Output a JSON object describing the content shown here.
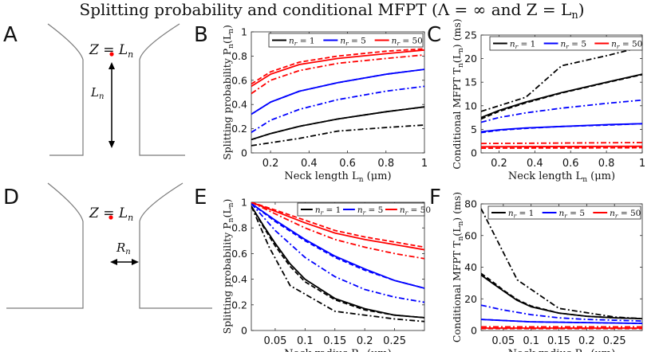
{
  "figure": {
    "title": "Splitting probability and conditional MFPT (Λ = ∞ and Z = L",
    "title_sub": "n",
    "title_end": ")"
  },
  "schematics": [
    {
      "letter": "A",
      "z_label": "Z = L",
      "z_sub": "n",
      "dim_label": "L",
      "dim_sub": "n",
      "arrow": "vertical"
    },
    {
      "letter": "D",
      "z_label": "Z = L",
      "z_sub": "n",
      "dim_label": "R",
      "dim_sub": "n",
      "arrow": "horizontal"
    }
  ],
  "colors": {
    "nr1": "#000000",
    "nr5": "#0000ff",
    "nr50": "#ff0000",
    "axis": "#262626",
    "schematic": "#7a7a7a",
    "point": "#ff0000"
  },
  "chart_data": [
    {
      "panel": "B",
      "type": "line",
      "xlabel": "Neck length L",
      "xlabel_sub": "n",
      "xlabel_unit": " (μm)",
      "ylabel": "Splitting probability P",
      "ylabel_sub": "n",
      "ylabel_arg": "(L",
      "ylabel_arg_sub": "n",
      "ylabel_end": ")",
      "xlim": [
        0.1,
        1.0
      ],
      "ylim": [
        0,
        1.0
      ],
      "xticks": [
        0.2,
        0.4,
        0.6,
        0.8,
        1.0
      ],
      "xticklabels": [
        "0.2",
        "0.4",
        "0.6",
        "0.8",
        "1"
      ],
      "yticks": [
        0,
        0.2,
        0.4,
        0.6,
        0.8,
        1.0
      ],
      "yticklabels": [
        "0",
        "0.2",
        "0.4",
        "0.6",
        "0.8",
        "1"
      ],
      "legend": [
        "n_r = 1",
        "n_r = 5",
        "n_r = 50"
      ],
      "legend_position": "top",
      "series": [
        {
          "name": "n_r = 1",
          "color": "nr1",
          "style": "solid",
          "x": [
            0.1,
            0.2,
            0.35,
            0.55,
            0.8,
            1.0
          ],
          "y": [
            0.11,
            0.16,
            0.22,
            0.28,
            0.34,
            0.38
          ]
        },
        {
          "name": "n_r = 1",
          "color": "nr1",
          "style": "dashed",
          "x": [
            0.1,
            0.2,
            0.35,
            0.55,
            0.8,
            1.0
          ],
          "y": [
            0.11,
            0.16,
            0.22,
            0.28,
            0.34,
            0.38
          ]
        },
        {
          "name": "n_r = 1",
          "color": "nr1",
          "style": "dashdot",
          "x": [
            0.1,
            0.35,
            0.55,
            0.8,
            1.0
          ],
          "y": [
            0.06,
            0.12,
            0.18,
            0.21,
            0.23
          ]
        },
        {
          "name": "n_r = 5",
          "color": "nr5",
          "style": "solid",
          "x": [
            0.1,
            0.2,
            0.35,
            0.55,
            0.8,
            1.0
          ],
          "y": [
            0.32,
            0.42,
            0.51,
            0.58,
            0.65,
            0.69
          ]
        },
        {
          "name": "n_r = 5",
          "color": "nr5",
          "style": "dashed",
          "x": [
            0.1,
            0.2,
            0.35,
            0.55,
            0.8,
            1.0
          ],
          "y": [
            0.32,
            0.42,
            0.51,
            0.58,
            0.65,
            0.69
          ]
        },
        {
          "name": "n_r = 5",
          "color": "nr5",
          "style": "dashdot",
          "x": [
            0.1,
            0.2,
            0.35,
            0.55,
            0.8,
            1.0
          ],
          "y": [
            0.17,
            0.27,
            0.36,
            0.44,
            0.51,
            0.55
          ]
        },
        {
          "name": "n_r = 50",
          "color": "nr50",
          "style": "solid",
          "x": [
            0.1,
            0.2,
            0.35,
            0.55,
            0.8,
            1.0
          ],
          "y": [
            0.55,
            0.65,
            0.73,
            0.78,
            0.82,
            0.85
          ]
        },
        {
          "name": "n_r = 50",
          "color": "nr50",
          "style": "dashed",
          "x": [
            0.1,
            0.2,
            0.35,
            0.55,
            0.8,
            1.0
          ],
          "y": [
            0.57,
            0.67,
            0.75,
            0.8,
            0.84,
            0.86
          ]
        },
        {
          "name": "n_r = 50",
          "color": "nr50",
          "style": "dashdot",
          "x": [
            0.1,
            0.2,
            0.35,
            0.55,
            0.8,
            1.0
          ],
          "y": [
            0.49,
            0.6,
            0.68,
            0.74,
            0.78,
            0.81
          ]
        }
      ]
    },
    {
      "panel": "C",
      "type": "line",
      "xlabel": "Neck length L",
      "xlabel_sub": "n",
      "xlabel_unit": " (μm)",
      "ylabel": "Conditional MFPT T",
      "ylabel_sub": "n",
      "ylabel_arg": "(L",
      "ylabel_arg_sub": "n",
      "ylabel_end": ") (ms)",
      "xlim": [
        0.1,
        1.0
      ],
      "ylim": [
        0,
        25
      ],
      "xticks": [
        0.2,
        0.4,
        0.6,
        0.8,
        1.0
      ],
      "xticklabels": [
        "0.2",
        "0.4",
        "0.6",
        "0.8",
        "1"
      ],
      "yticks": [
        0,
        5,
        10,
        15,
        20,
        25
      ],
      "yticklabels": [
        "0",
        "5",
        "10",
        "15",
        "20",
        "25"
      ],
      "legend": [
        "n_r = 1",
        "n_r = 5",
        "n_r = 50"
      ],
      "legend_position": "top",
      "series": [
        {
          "name": "n_r = 1",
          "color": "nr1",
          "style": "solid",
          "x": [
            0.1,
            0.2,
            0.35,
            0.55,
            0.8,
            1.0
          ],
          "y": [
            7.5,
            9.0,
            10.8,
            12.8,
            15.0,
            16.7
          ]
        },
        {
          "name": "n_r = 1",
          "color": "nr1",
          "style": "dashed",
          "x": [
            0.1,
            0.2,
            0.35,
            0.55,
            0.8,
            1.0
          ],
          "y": [
            7.2,
            8.8,
            10.6,
            12.7,
            14.9,
            16.6
          ]
        },
        {
          "name": "n_r = 1",
          "color": "nr1",
          "style": "dashdot",
          "x": [
            0.1,
            0.35,
            0.55,
            0.8,
            1.0
          ],
          "y": [
            8.8,
            11.8,
            18.5,
            20.6,
            22.5
          ]
        },
        {
          "name": "n_r = 5",
          "color": "nr5",
          "style": "solid",
          "x": [
            0.1,
            0.2,
            0.35,
            0.55,
            0.8,
            1.0
          ],
          "y": [
            4.5,
            4.9,
            5.3,
            5.6,
            6.0,
            6.2
          ]
        },
        {
          "name": "n_r = 5",
          "color": "nr5",
          "style": "dashed",
          "x": [
            0.1,
            0.2,
            0.35,
            0.55,
            0.8,
            1.0
          ],
          "y": [
            4.3,
            4.8,
            5.2,
            5.6,
            5.9,
            6.2
          ]
        },
        {
          "name": "n_r = 5",
          "color": "nr5",
          "style": "dashdot",
          "x": [
            0.1,
            0.2,
            0.35,
            0.55,
            0.8,
            1.0
          ],
          "y": [
            6.5,
            7.5,
            8.5,
            9.5,
            10.5,
            11.2
          ]
        },
        {
          "name": "n_r = 50",
          "color": "nr50",
          "style": "solid",
          "x": [
            0.1,
            1.0
          ],
          "y": [
            1.3,
            1.4
          ]
        },
        {
          "name": "n_r = 50",
          "color": "nr50",
          "style": "dashed",
          "x": [
            0.1,
            1.0
          ],
          "y": [
            1.0,
            1.1
          ]
        },
        {
          "name": "n_r = 50",
          "color": "nr50",
          "style": "dashdot",
          "x": [
            0.1,
            1.0
          ],
          "y": [
            2.0,
            2.2
          ]
        }
      ]
    },
    {
      "panel": "E",
      "type": "line",
      "xlabel": "Neck radius R",
      "xlabel_sub": "n",
      "xlabel_unit": " (μm)",
      "ylabel": "Splitting probability P",
      "ylabel_sub": "n",
      "ylabel_arg": "(L",
      "ylabel_arg_sub": "n",
      "ylabel_end": ")",
      "xlim": [
        0.01,
        0.3
      ],
      "ylim": [
        0,
        1.0
      ],
      "xticks": [
        0.05,
        0.1,
        0.15,
        0.2,
        0.25
      ],
      "xticklabels": [
        "0.05",
        "0.1",
        "0.15",
        "0.2",
        "0.25"
      ],
      "yticks": [
        0,
        0.2,
        0.4,
        0.6,
        0.8,
        1.0
      ],
      "yticklabels": [
        "0",
        "0.2",
        "0.4",
        "0.6",
        "0.8",
        "1"
      ],
      "legend": [
        "n_r = 1",
        "n_r = 5",
        "n_r = 50"
      ],
      "legend_position": "top",
      "series": [
        {
          "name": "n_r = 1",
          "color": "nr1",
          "style": "solid",
          "x": [
            0.01,
            0.03,
            0.05,
            0.075,
            0.1,
            0.15,
            0.2,
            0.25,
            0.3
          ],
          "y": [
            0.97,
            0.82,
            0.68,
            0.52,
            0.4,
            0.25,
            0.17,
            0.12,
            0.1
          ]
        },
        {
          "name": "n_r = 1",
          "color": "nr1",
          "style": "dashed",
          "x": [
            0.01,
            0.03,
            0.05,
            0.075,
            0.1,
            0.15,
            0.2,
            0.25,
            0.3
          ],
          "y": [
            0.97,
            0.81,
            0.66,
            0.5,
            0.38,
            0.24,
            0.16,
            0.12,
            0.1
          ]
        },
        {
          "name": "n_r = 1",
          "color": "nr1",
          "style": "dashdot",
          "x": [
            0.01,
            0.04,
            0.075,
            0.15,
            0.25,
            0.3
          ],
          "y": [
            0.97,
            0.65,
            0.35,
            0.15,
            0.09,
            0.07
          ]
        },
        {
          "name": "n_r = 5",
          "color": "nr5",
          "style": "solid",
          "x": [
            0.01,
            0.05,
            0.1,
            0.15,
            0.2,
            0.25,
            0.3
          ],
          "y": [
            0.99,
            0.86,
            0.71,
            0.58,
            0.48,
            0.39,
            0.33
          ]
        },
        {
          "name": "n_r = 5",
          "color": "nr5",
          "style": "dashed",
          "x": [
            0.01,
            0.05,
            0.1,
            0.15,
            0.2,
            0.25,
            0.3
          ],
          "y": [
            0.99,
            0.85,
            0.7,
            0.57,
            0.47,
            0.39,
            0.33
          ]
        },
        {
          "name": "n_r = 5",
          "color": "nr5",
          "style": "dashdot",
          "x": [
            0.01,
            0.05,
            0.1,
            0.15,
            0.2,
            0.25,
            0.3
          ],
          "y": [
            0.99,
            0.78,
            0.57,
            0.42,
            0.32,
            0.26,
            0.22
          ]
        },
        {
          "name": "n_r = 50",
          "color": "nr50",
          "style": "solid",
          "x": [
            0.01,
            0.05,
            0.1,
            0.15,
            0.2,
            0.25,
            0.3
          ],
          "y": [
            1.0,
            0.93,
            0.84,
            0.76,
            0.71,
            0.67,
            0.63
          ]
        },
        {
          "name": "n_r = 50",
          "color": "nr50",
          "style": "dashed",
          "x": [
            0.01,
            0.05,
            0.1,
            0.15,
            0.2,
            0.25,
            0.3
          ],
          "y": [
            1.0,
            0.94,
            0.86,
            0.78,
            0.73,
            0.69,
            0.65
          ]
        },
        {
          "name": "n_r = 50",
          "color": "nr50",
          "style": "dashdot",
          "x": [
            0.01,
            0.05,
            0.1,
            0.15,
            0.2,
            0.25,
            0.3
          ],
          "y": [
            1.0,
            0.91,
            0.8,
            0.71,
            0.65,
            0.6,
            0.56
          ]
        }
      ]
    },
    {
      "panel": "F",
      "type": "line",
      "xlabel": "Neck radius R",
      "xlabel_sub": "n",
      "xlabel_unit": " (μm)",
      "ylabel": "Conditional MFPT T",
      "ylabel_sub": "n",
      "ylabel_arg": "(L",
      "ylabel_arg_sub": "n",
      "ylabel_end": ") (ms)",
      "xlim": [
        0.01,
        0.3
      ],
      "ylim": [
        0,
        80
      ],
      "xticks": [
        0.05,
        0.1,
        0.15,
        0.2,
        0.25
      ],
      "xticklabels": [
        "0.05",
        "0.1",
        "0.15",
        "0.2",
        "0.25"
      ],
      "yticks": [
        0,
        20,
        40,
        60,
        80
      ],
      "yticklabels": [
        "0",
        "20",
        "40",
        "60",
        "80"
      ],
      "legend": [
        "n_r = 1",
        "n_r = 5",
        "n_r = 50"
      ],
      "legend_position": "top",
      "series": [
        {
          "name": "n_r = 1",
          "color": "nr1",
          "style": "solid",
          "x": [
            0.01,
            0.03,
            0.05,
            0.075,
            0.1,
            0.15,
            0.2,
            0.25,
            0.3
          ],
          "y": [
            35,
            30,
            25,
            19,
            15,
            11,
            9,
            8,
            7.5
          ]
        },
        {
          "name": "n_r = 1",
          "color": "nr1",
          "style": "dashed",
          "x": [
            0.01,
            0.03,
            0.05,
            0.075,
            0.1,
            0.15,
            0.2,
            0.25,
            0.3
          ],
          "y": [
            36,
            31,
            25.5,
            19.5,
            15.5,
            11,
            9,
            8,
            7.5
          ]
        },
        {
          "name": "n_r = 1",
          "color": "nr1",
          "style": "dashdot",
          "x": [
            0.01,
            0.075,
            0.15,
            0.25,
            0.3
          ],
          "y": [
            77,
            32,
            14,
            8.5,
            7.5
          ]
        },
        {
          "name": "n_r = 5",
          "color": "nr5",
          "style": "solid",
          "x": [
            0.01,
            0.1,
            0.2,
            0.3
          ],
          "y": [
            7,
            5.5,
            5,
            4.5
          ]
        },
        {
          "name": "n_r = 5",
          "color": "nr5",
          "style": "dashed",
          "x": [
            0.01,
            0.1,
            0.2,
            0.3
          ],
          "y": [
            7,
            5.5,
            5,
            4.5
          ]
        },
        {
          "name": "n_r = 5",
          "color": "nr5",
          "style": "dashdot",
          "x": [
            0.01,
            0.05,
            0.1,
            0.15,
            0.2,
            0.3
          ],
          "y": [
            16,
            13,
            10,
            8,
            7,
            6
          ]
        },
        {
          "name": "n_r = 50",
          "color": "nr50",
          "style": "solid",
          "x": [
            0.01,
            0.3
          ],
          "y": [
            1.5,
            1.5
          ]
        },
        {
          "name": "n_r = 50",
          "color": "nr50",
          "style": "dashed",
          "x": [
            0.01,
            0.3
          ],
          "y": [
            1.2,
            1.2
          ]
        },
        {
          "name": "n_r = 50",
          "color": "nr50",
          "style": "dashdot",
          "x": [
            0.01,
            0.3
          ],
          "y": [
            2.3,
            2.3
          ]
        }
      ]
    }
  ]
}
